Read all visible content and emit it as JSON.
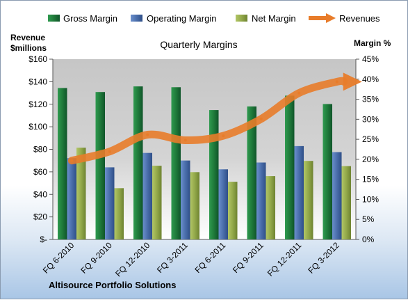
{
  "chart_data": {
    "type": "bar",
    "title": "Quarterly Margins",
    "categories": [
      "FQ 6-2010",
      "FQ 9-2010",
      "FQ 12-2010",
      "FQ 3-2011",
      "FQ 6-2011",
      "FQ 9-2011",
      "FQ 12-2011",
      "FQ 3-2012"
    ],
    "left_axis_label_line1": "Revenue",
    "left_axis_label_line2": "$millions",
    "right_axis_label": "Margin %",
    "left_ylim": [
      0,
      160
    ],
    "right_ylim": [
      0,
      45
    ],
    "left_ticks": [
      "$-",
      "$20",
      "$40",
      "$60",
      "$80",
      "$100",
      "$120",
      "$140",
      "$160"
    ],
    "right_ticks": [
      "0%",
      "5%",
      "10%",
      "15%",
      "20%",
      "25%",
      "30%",
      "35%",
      "40%",
      "45%"
    ],
    "grid": false,
    "legend_position": "top",
    "series": [
      {
        "name": "Gross Margin",
        "type": "bar",
        "axis": "right",
        "color": "#1f7a3a",
        "values": [
          37.8,
          36.8,
          38.2,
          38.0,
          32.3,
          33.2,
          35.9,
          33.8
        ]
      },
      {
        "name": "Operating Margin",
        "type": "bar",
        "axis": "right",
        "color": "#4a6eab",
        "values": [
          20.3,
          18.0,
          21.6,
          19.7,
          17.5,
          19.2,
          23.3,
          21.8
        ]
      },
      {
        "name": "Net Margin",
        "type": "bar",
        "axis": "right",
        "color": "#93a94a",
        "values": [
          22.9,
          12.8,
          18.4,
          16.8,
          14.4,
          15.8,
          19.6,
          18.3
        ]
      },
      {
        "name": "Revenues",
        "type": "line",
        "axis": "left",
        "color": "#e87c2a",
        "values": [
          70,
          78,
          93,
          88,
          92,
          107,
          130,
          140
        ]
      }
    ],
    "footer": "Altisource Portfolio Solutions"
  }
}
